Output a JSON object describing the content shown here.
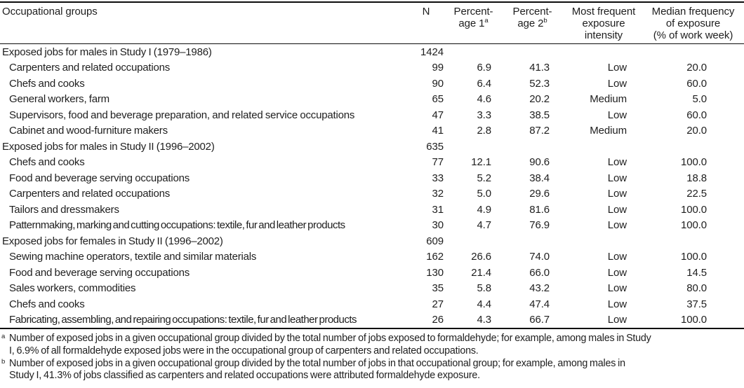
{
  "table": {
    "columns": [
      {
        "label": "Occupational groups"
      },
      {
        "label": "N"
      },
      {
        "line1": "Percent-",
        "line2": "age 1",
        "sup": "a"
      },
      {
        "line1": "Percent-",
        "line2": "age 2",
        "sup": "b"
      },
      {
        "line1": "Most frequent",
        "line2": "exposure",
        "line3": "intensity"
      },
      {
        "line1": "Median frequency",
        "line2": "of exposure",
        "line3": "(% of work week)"
      }
    ],
    "rows": [
      {
        "type": "section",
        "label": "Exposed jobs for males in Study I (1979–1986)",
        "n": "1424"
      },
      {
        "type": "data",
        "label": "Carpenters and related occupations",
        "n": "99",
        "p1": "6.9",
        "p2": "41.3",
        "intensity": "Low",
        "median": "20.0"
      },
      {
        "type": "data",
        "label": "Chefs and cooks",
        "n": "90",
        "p1": "6.4",
        "p2": "52.3",
        "intensity": "Low",
        "median": "60.0"
      },
      {
        "type": "data",
        "label": "General workers, farm",
        "n": "65",
        "p1": "4.6",
        "p2": "20.2",
        "intensity": "Medium",
        "median": "5.0"
      },
      {
        "type": "data",
        "label": "Supervisors, food and beverage preparation, and related service occupations",
        "n": "47",
        "p1": "3.3",
        "p2": "38.5",
        "intensity": "Low",
        "median": "60.0"
      },
      {
        "type": "data",
        "label": "Cabinet and wood-furniture makers",
        "n": "41",
        "p1": "2.8",
        "p2": "87.2",
        "intensity": "Medium",
        "median": "20.0"
      },
      {
        "type": "section",
        "label": "Exposed jobs for males in Study II (1996–2002)",
        "n": "635"
      },
      {
        "type": "data",
        "label": "Chefs and cooks",
        "n": "77",
        "p1": "12.1",
        "p2": "90.6",
        "intensity": "Low",
        "median": "100.0"
      },
      {
        "type": "data",
        "label": "Food and beverage serving occupations",
        "n": "33",
        "p1": "5.2",
        "p2": "38.4",
        "intensity": "Low",
        "median": "18.8"
      },
      {
        "type": "data",
        "label": "Carpenters and related occupations",
        "n": "32",
        "p1": "5.0",
        "p2": "29.6",
        "intensity": "Low",
        "median": "22.5"
      },
      {
        "type": "data",
        "label": "Tailors and dressmakers",
        "n": "31",
        "p1": "4.9",
        "p2": "81.6",
        "intensity": "Low",
        "median": "100.0"
      },
      {
        "type": "data",
        "label": "Patternmaking, marking and cutting occupations: textile, fur and leather products",
        "n": "30",
        "p1": "4.7",
        "p2": "76.9",
        "intensity": "Low",
        "median": "100.0"
      },
      {
        "type": "section",
        "label": "Exposed jobs for females in Study II (1996–2002)",
        "n": "609"
      },
      {
        "type": "data",
        "label": "Sewing machine operators, textile and similar materials",
        "n": "162",
        "p1": "26.6",
        "p2": "74.0",
        "intensity": "Low",
        "median": "100.0"
      },
      {
        "type": "data",
        "label": "Food and beverage serving occupations",
        "n": "130",
        "p1": "21.4",
        "p2": "66.0",
        "intensity": "Low",
        "median": "14.5"
      },
      {
        "type": "data",
        "label": "Sales workers, commodities",
        "n": "35",
        "p1": "5.8",
        "p2": "43.2",
        "intensity": "Low",
        "median": "80.0"
      },
      {
        "type": "data",
        "label": "Chefs and cooks",
        "n": "27",
        "p1": "4.4",
        "p2": "47.4",
        "intensity": "Low",
        "median": "37.5"
      },
      {
        "type": "data",
        "label": "Fabricating, assembling, and repairing occupations: textile, fur and leather products",
        "n": "26",
        "p1": "4.3",
        "p2": "66.7",
        "intensity": "Low",
        "median": "100.0"
      }
    ]
  },
  "footnotes": [
    {
      "marker": "a",
      "line1": "Number of exposed jobs in a given occupational group divided by the total number of jobs exposed to formaldehyde; for example, among males in Study",
      "line2": "I, 6.9% of all formaldehyde exposed jobs were in the occupational group of carpenters and related occupations."
    },
    {
      "marker": "b",
      "line1": "Number of exposed jobs in a given occupational group divided by the total number of jobs in that occupational group; for example, among males in",
      "line2": "Study I, 41.3% of jobs classified as carpenters and related occupations were attributed formaldehyde exposure."
    }
  ]
}
